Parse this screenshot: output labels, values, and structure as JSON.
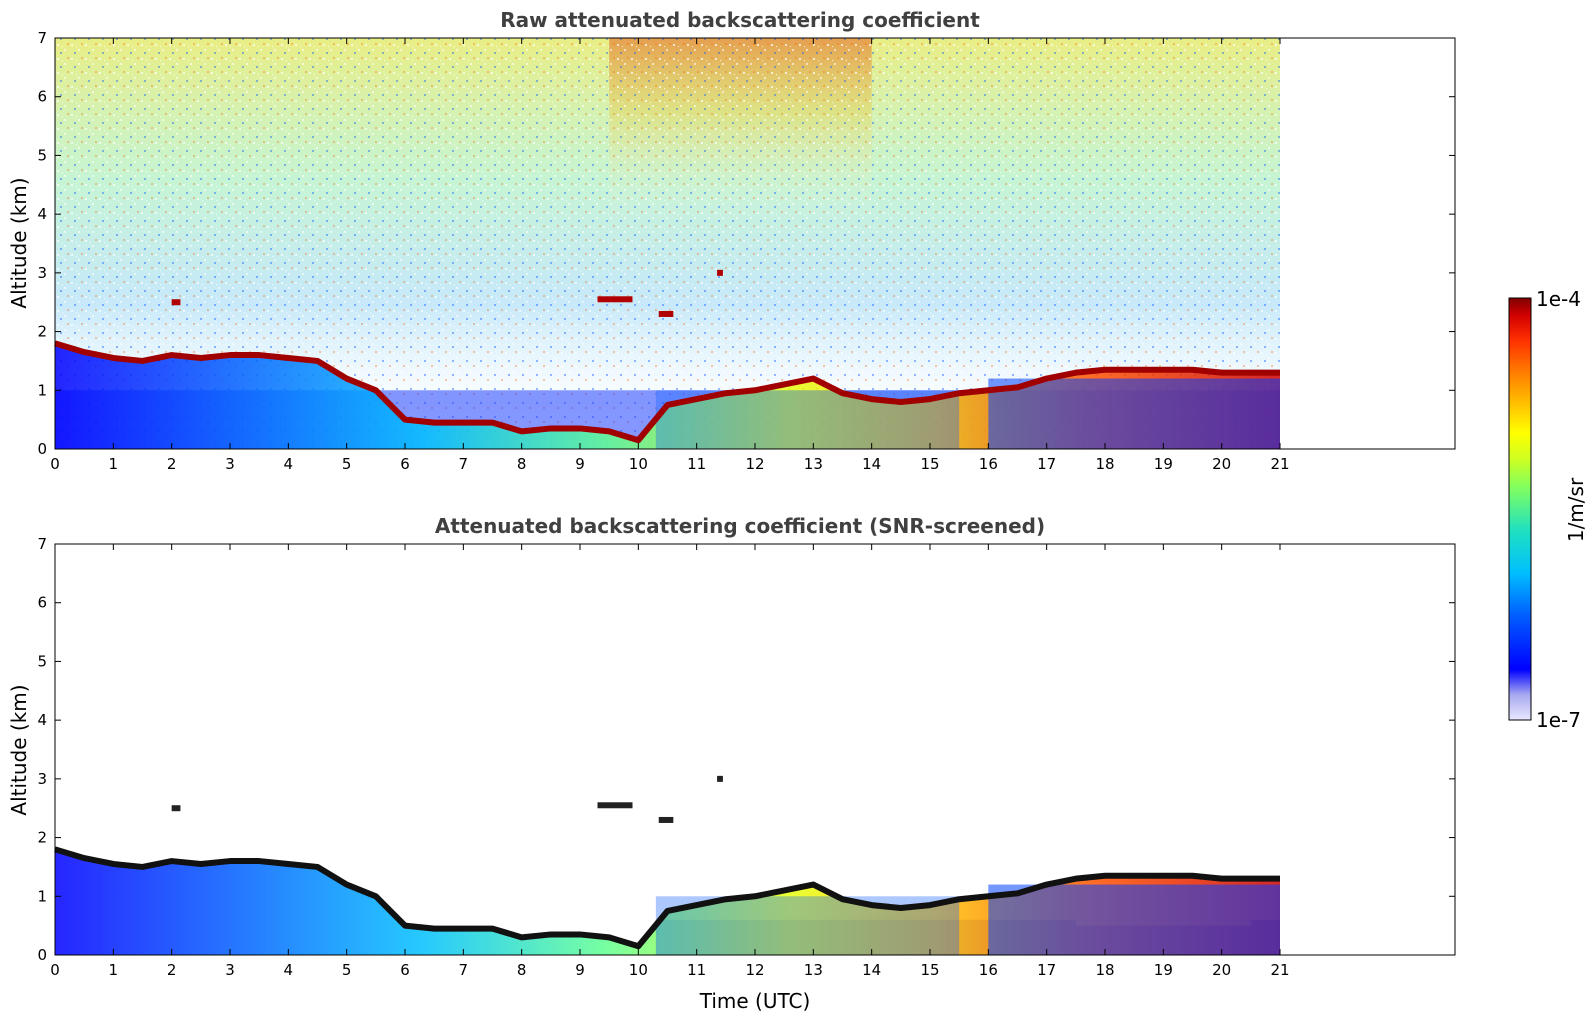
{
  "chart_data": [
    {
      "type": "heatmap",
      "title": "Raw attenuated backscattering coefficient",
      "xlabel": "",
      "ylabel": "Altitude (km)",
      "xlim": [
        0,
        24
      ],
      "ylim": [
        0,
        7
      ],
      "x_ticks": [
        "0",
        "1",
        "2",
        "3",
        "4",
        "5",
        "6",
        "7",
        "8",
        "9",
        "10",
        "11",
        "12",
        "13",
        "14",
        "15",
        "16",
        "17",
        "18",
        "19",
        "20",
        "21"
      ],
      "y_ticks": [
        "0",
        "1",
        "2",
        "3",
        "4",
        "5",
        "6",
        "7"
      ],
      "data_extent_x": [
        0,
        21
      ],
      "boundary_layer_top_km": [
        {
          "x": 0,
          "y": 1.8
        },
        {
          "x": 0.5,
          "y": 1.65
        },
        {
          "x": 1,
          "y": 1.55
        },
        {
          "x": 1.5,
          "y": 1.5
        },
        {
          "x": 2,
          "y": 1.6
        },
        {
          "x": 2.5,
          "y": 1.55
        },
        {
          "x": 3,
          "y": 1.6
        },
        {
          "x": 3.5,
          "y": 1.6
        },
        {
          "x": 4,
          "y": 1.55
        },
        {
          "x": 4.5,
          "y": 1.5
        },
        {
          "x": 5,
          "y": 1.2
        },
        {
          "x": 5.5,
          "y": 1.0
        },
        {
          "x": 6,
          "y": 0.5
        },
        {
          "x": 6.5,
          "y": 0.45
        },
        {
          "x": 7,
          "y": 0.45
        },
        {
          "x": 7.5,
          "y": 0.45
        },
        {
          "x": 8,
          "y": 0.3
        },
        {
          "x": 8.5,
          "y": 0.35
        },
        {
          "x": 9,
          "y": 0.35
        },
        {
          "x": 9.5,
          "y": 0.3
        },
        {
          "x": 10,
          "y": 0.15
        },
        {
          "x": 10.5,
          "y": 0.75
        },
        {
          "x": 11,
          "y": 0.85
        },
        {
          "x": 11.5,
          "y": 0.95
        },
        {
          "x": 12,
          "y": 1.0
        },
        {
          "x": 12.5,
          "y": 1.1
        },
        {
          "x": 13,
          "y": 1.2
        },
        {
          "x": 13.5,
          "y": 0.95
        },
        {
          "x": 14,
          "y": 0.85
        },
        {
          "x": 14.5,
          "y": 0.8
        },
        {
          "x": 15,
          "y": 0.85
        },
        {
          "x": 15.5,
          "y": 0.95
        },
        {
          "x": 16,
          "y": 1.0
        },
        {
          "x": 16.5,
          "y": 1.05
        },
        {
          "x": 17,
          "y": 1.2
        },
        {
          "x": 17.5,
          "y": 1.3
        },
        {
          "x": 18,
          "y": 1.35
        },
        {
          "x": 18.5,
          "y": 1.35
        },
        {
          "x": 19,
          "y": 1.35
        },
        {
          "x": 19.5,
          "y": 1.35
        },
        {
          "x": 20,
          "y": 1.3
        },
        {
          "x": 20.5,
          "y": 1.3
        },
        {
          "x": 21,
          "y": 1.3
        }
      ]
    },
    {
      "type": "heatmap",
      "title": "Attenuated backscattering coefficient (SNR-screened)",
      "xlabel": "Time (UTC)",
      "ylabel": "Altitude (km)",
      "xlim": [
        0,
        24
      ],
      "ylim": [
        0,
        7
      ],
      "x_ticks": [
        "0",
        "1",
        "2",
        "3",
        "4",
        "5",
        "6",
        "7",
        "8",
        "9",
        "10",
        "11",
        "12",
        "13",
        "14",
        "15",
        "16",
        "17",
        "18",
        "19",
        "20",
        "21"
      ],
      "y_ticks": [
        "0",
        "1",
        "2",
        "3",
        "4",
        "5",
        "6",
        "7"
      ],
      "data_extent_x": [
        0,
        21
      ]
    }
  ],
  "colorbar": {
    "label": "1/m/sr",
    "max_label": "1e-4",
    "min_label": "1e-7",
    "scale": "log",
    "range": [
      1e-07,
      0.0001
    ],
    "colors": [
      "#e8e8ff",
      "#a8a8f0",
      "#0000ff",
      "#0060ff",
      "#00c0ff",
      "#20e0c0",
      "#80ff60",
      "#d0ff20",
      "#ffff00",
      "#ffc000",
      "#ff8000",
      "#ff3000",
      "#d00000",
      "#800000"
    ]
  }
}
